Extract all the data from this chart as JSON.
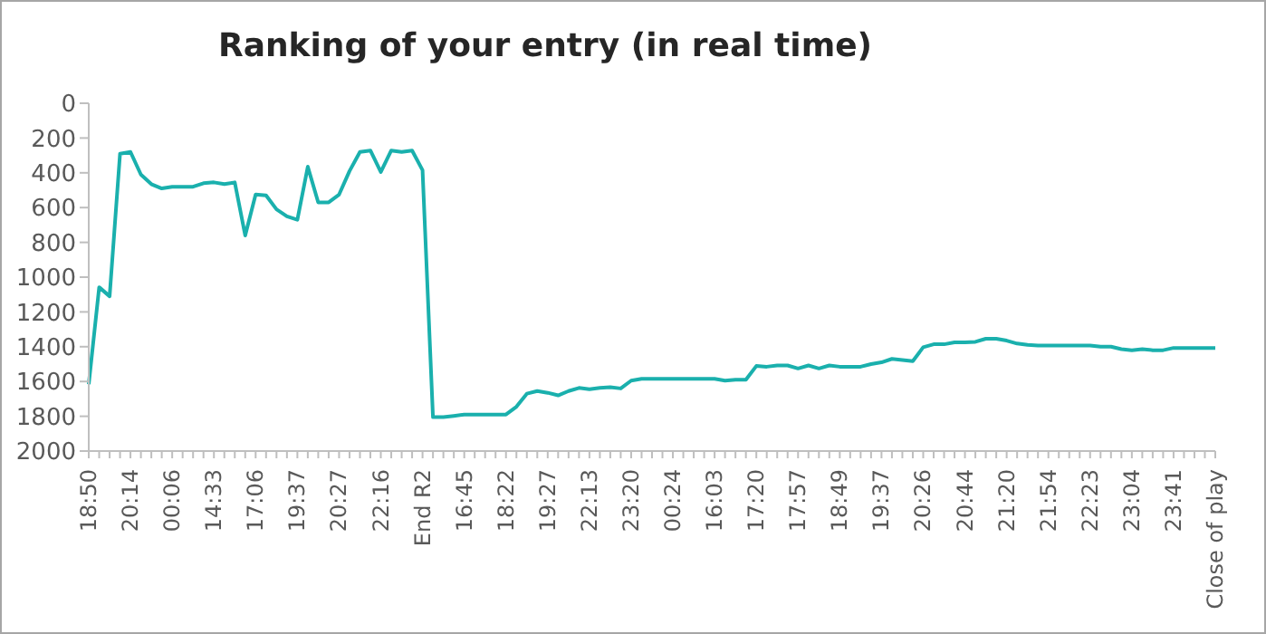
{
  "chart_data": {
    "type": "line",
    "title": "Ranking of your entry (in real time)",
    "categories": [
      "18:50",
      null,
      null,
      null,
      "20:14",
      null,
      null,
      null,
      "00:06",
      null,
      null,
      null,
      "14:33",
      null,
      null,
      null,
      "17:06",
      null,
      null,
      null,
      "19:37",
      null,
      null,
      null,
      "20:27",
      null,
      null,
      null,
      "22:16",
      null,
      null,
      null,
      "End R2",
      null,
      null,
      null,
      "16:45",
      null,
      null,
      null,
      "18:22",
      null,
      null,
      null,
      "19:27",
      null,
      null,
      null,
      "22:13",
      null,
      null,
      null,
      "23:20",
      null,
      null,
      null,
      "00:24",
      null,
      null,
      null,
      "16:03",
      null,
      null,
      null,
      "17:20",
      null,
      null,
      null,
      "17:57",
      null,
      null,
      null,
      "18:49",
      null,
      null,
      null,
      "19:37",
      null,
      null,
      null,
      "20:26",
      null,
      null,
      null,
      "20:44",
      null,
      null,
      null,
      "21:20",
      null,
      null,
      null,
      "21:54",
      null,
      null,
      null,
      "22:23",
      null,
      null,
      null,
      "23:04",
      null,
      null,
      null,
      "23:41",
      null,
      null,
      null,
      "Close of play"
    ],
    "series": [
      {
        "color": "#1ab0ad",
        "values": [
          1616,
          1058,
          1110,
          290,
          280,
          410,
          465,
          490,
          480,
          480,
          480,
          460,
          455,
          465,
          455,
          760,
          525,
          530,
          610,
          650,
          670,
          365,
          570,
          570,
          525,
          390,
          280,
          272,
          395,
          272,
          280,
          272,
          385,
          1805,
          1805,
          1798,
          1790,
          1790,
          1790,
          1790,
          1790,
          1745,
          1670,
          1655,
          1665,
          1680,
          1655,
          1637,
          1645,
          1637,
          1633,
          1640,
          1595,
          1585,
          1585,
          1585,
          1585,
          1585,
          1585,
          1585,
          1585,
          1595,
          1590,
          1590,
          1511,
          1515,
          1508,
          1508,
          1525,
          1508,
          1525,
          1508,
          1515,
          1515,
          1515,
          1500,
          1490,
          1470,
          1477,
          1483,
          1403,
          1386,
          1386,
          1375,
          1375,
          1372,
          1354,
          1354,
          1365,
          1382,
          1389,
          1393,
          1393,
          1393,
          1393,
          1393,
          1393,
          1400,
          1400,
          1414,
          1420,
          1414,
          1420,
          1420,
          1407,
          1407,
          1407,
          1407,
          1407
        ]
      }
    ],
    "ylim": [
      2000,
      0
    ],
    "yticks": [
      0,
      200,
      400,
      600,
      800,
      1000,
      1200,
      1400,
      1600,
      1800,
      2000
    ],
    "grid": false,
    "legend": false,
    "marker": "none",
    "line_style": "solid"
  }
}
